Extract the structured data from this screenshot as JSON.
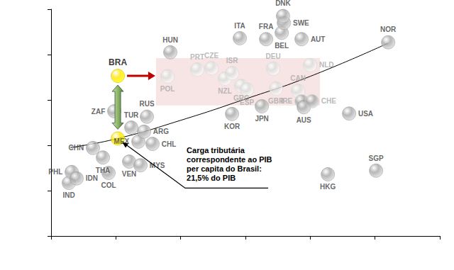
{
  "chart_data": {
    "type": "scatter",
    "xlim": [
      0,
      60000
    ],
    "xticks": [
      0,
      10000,
      20000,
      30000,
      40000,
      50000,
      60000
    ],
    "ylim": [
      0,
      50
    ],
    "yticks": [
      0,
      10,
      20,
      30,
      40,
      50
    ],
    "grid": false,
    "tick_labels": false,
    "marker": "circle",
    "points": [
      {
        "label": "IND",
        "x": 2740,
        "y": 11.7,
        "color": "#a6a6a6"
      },
      {
        "label": "PHL",
        "x": 3180,
        "y": 14.1,
        "color": "#a6a6a6"
      },
      {
        "label": "IDN",
        "x": 3940,
        "y": 12.7,
        "color": "#a6a6a6"
      },
      {
        "label": "THA",
        "x": 8000,
        "y": 17.3,
        "color": "#a6a6a6"
      },
      {
        "label": "CHN",
        "x": 6460,
        "y": 19.4,
        "color": "#a6a6a6"
      },
      {
        "label": "COL",
        "x": 8870,
        "y": 13.9,
        "color": "#a6a6a6"
      },
      {
        "label": "VEN",
        "x": 12050,
        "y": 16.4,
        "color": "#a6a6a6"
      },
      {
        "label": "MYS",
        "x": 13800,
        "y": 15.6,
        "color": "#a6a6a6"
      },
      {
        "label": "MEX",
        "x": 13470,
        "y": 20.8,
        "color": "#a6a6a6"
      },
      {
        "label": "CHL",
        "x": 15660,
        "y": 20.3,
        "color": "#a6a6a6"
      },
      {
        "label": "ARG",
        "x": 14350,
        "y": 23.0,
        "color": "#a6a6a6"
      },
      {
        "label": "RUS",
        "x": 14790,
        "y": 26.3,
        "color": "#a6a6a6"
      },
      {
        "label": "TUR",
        "x": 12380,
        "y": 23.9,
        "color": "#a6a6a6"
      },
      {
        "label": "ZAF",
        "x": 9750,
        "y": 27.5,
        "color": "#a6a6a6"
      },
      {
        "label": "BRA",
        "x": 10300,
        "y": 35.3,
        "color": "#ffe600"
      },
      {
        "label": null,
        "x": 10300,
        "y": 21.5,
        "color": "#ffe600"
      },
      {
        "label": "HUN",
        "x": 18400,
        "y": 40.5,
        "color": "#a6a6a6"
      },
      {
        "label": "POL",
        "x": 17960,
        "y": 35.2,
        "color": "#dcdcdc"
      },
      {
        "label": "PRT",
        "x": 22560,
        "y": 36.7,
        "color": "#dcdcdc"
      },
      {
        "label": "CZE",
        "x": 24750,
        "y": 37.0,
        "color": "#dcdcdc"
      },
      {
        "label": "NZL",
        "x": 26830,
        "y": 34.7,
        "color": "#dcdcdc"
      },
      {
        "label": "ISR",
        "x": 27930,
        "y": 35.9,
        "color": "#dcdcdc"
      },
      {
        "label": "GRC",
        "x": 29350,
        "y": 33.1,
        "color": "#dcdcdc"
      },
      {
        "label": "ESP",
        "x": 30230,
        "y": 32.3,
        "color": "#dcdcdc"
      },
      {
        "label": "KOR",
        "x": 27930,
        "y": 26.9,
        "color": "#a6a6a6"
      },
      {
        "label": "JPN",
        "x": 32530,
        "y": 28.6,
        "color": "#a6a6a6"
      },
      {
        "label": "DEU",
        "x": 34280,
        "y": 36.9,
        "color": "#dcdcdc"
      },
      {
        "label": "GBR",
        "x": 34720,
        "y": 32.5,
        "color": "#dcdcdc"
      },
      {
        "label": "ITA",
        "x": 29130,
        "y": 43.6,
        "color": "#a6a6a6"
      },
      {
        "label": "FRA",
        "x": 33190,
        "y": 43.4,
        "color": "#a6a6a6"
      },
      {
        "label": "BEL",
        "x": 35600,
        "y": 44.8,
        "color": "#a6a6a6"
      },
      {
        "label": "SWE",
        "x": 35930,
        "y": 47.0,
        "color": "#a6a6a6"
      },
      {
        "label": "DNK",
        "x": 35800,
        "y": 48.5,
        "color": "#a6a6a6"
      },
      {
        "label": "AUT",
        "x": 38660,
        "y": 43.4,
        "color": "#a6a6a6"
      },
      {
        "label": "NLD",
        "x": 39980,
        "y": 37.7,
        "color": "#dcdcdc"
      },
      {
        "label": "CAN",
        "x": 38120,
        "y": 32.0,
        "color": "#dcdcdc"
      },
      {
        "label": "IRE",
        "x": 38660,
        "y": 29.7,
        "color": "#a6a6a6"
      },
      {
        "label": "AUS",
        "x": 39000,
        "y": 28.4,
        "color": "#a6a6a6"
      },
      {
        "label": "CHE",
        "x": 40300,
        "y": 29.7,
        "color": "#a6a6a6"
      },
      {
        "label": "USA",
        "x": 46000,
        "y": 27.0,
        "color": "#a6a6a6"
      },
      {
        "label": "NOR",
        "x": 52030,
        "y": 42.7,
        "color": "#a6a6a6"
      },
      {
        "label": "HKG",
        "x": 42720,
        "y": 13.6,
        "color": "#a6a6a6"
      },
      {
        "label": "SGP",
        "x": 50160,
        "y": 14.4,
        "color": "#a6a6a6"
      }
    ],
    "trend_line": {
      "x": [
        3000,
        10300,
        20000,
        30000,
        40000,
        52000
      ],
      "y": [
        19.5,
        21.5,
        25.5,
        30.2,
        35.2,
        42.5
      ],
      "color": "#000000"
    },
    "highlight": {
      "xlim": [
        16200,
        41500
      ],
      "ylim": [
        28.8,
        39.2
      ],
      "color": "#f2d4d4"
    },
    "annotation": [
      "Carga tributária",
      "correspondente ao PIB",
      "per capita do Brasil:",
      "21,5% do PIB"
    ]
  }
}
